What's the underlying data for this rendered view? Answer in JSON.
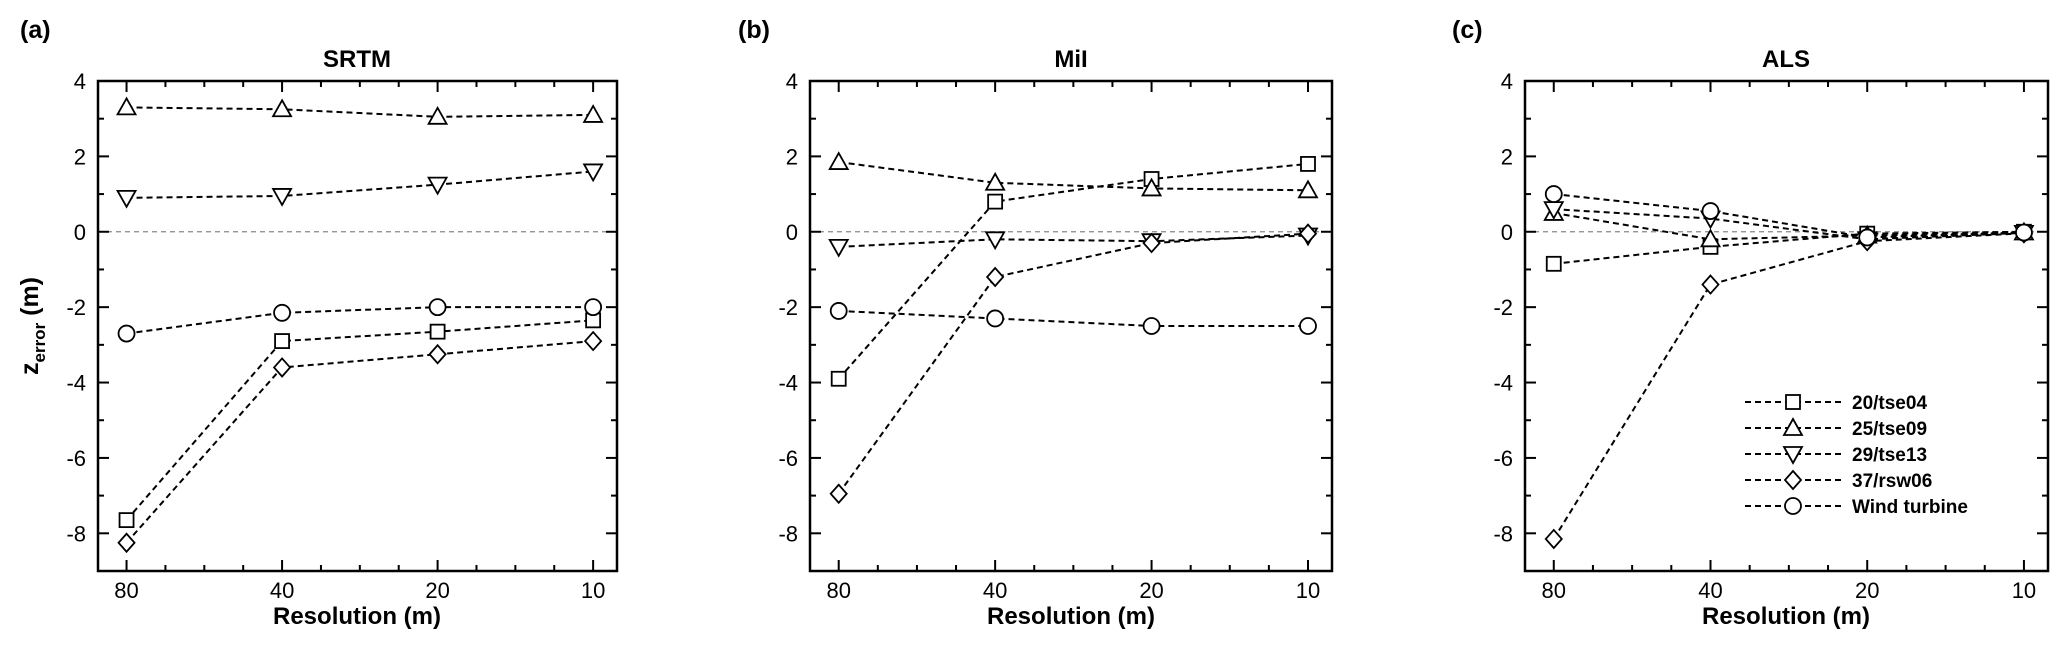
{
  "chart_data": [
    {
      "type": "line",
      "panel_letter": "(a)",
      "title": "SRTM",
      "xlabel": "Resolution (m)",
      "ylabel": "z",
      "ylabel_subscript": "error",
      "ylabel_unit": " (m)",
      "categories": [
        "80",
        "40",
        "20",
        "10"
      ],
      "ylim": [
        -9,
        4
      ],
      "yticks": [
        "4",
        "2",
        "0",
        "-2",
        "-4",
        "-6",
        "-8"
      ],
      "zero_reference_line": true,
      "series": [
        {
          "name": "20/tse04",
          "marker": "square",
          "values": [
            -7.65,
            -2.9,
            -2.65,
            -2.35
          ]
        },
        {
          "name": "25/tse09",
          "marker": "triangle-up",
          "values": [
            3.3,
            3.25,
            3.05,
            3.1
          ]
        },
        {
          "name": "29/tse13",
          "marker": "triangle-down",
          "values": [
            0.9,
            0.95,
            1.25,
            1.6
          ]
        },
        {
          "name": "37/rsw06",
          "marker": "diamond",
          "values": [
            -8.25,
            -3.6,
            -3.25,
            -2.9
          ]
        },
        {
          "name": "Wind turbine",
          "marker": "circle",
          "values": [
            -2.7,
            -2.15,
            -2.0,
            -2.0
          ]
        }
      ]
    },
    {
      "type": "line",
      "panel_letter": "(b)",
      "title": "MiI",
      "xlabel": "Resolution (m)",
      "categories": [
        "80",
        "40",
        "20",
        "10"
      ],
      "ylim": [
        -9,
        4
      ],
      "yticks": [
        "4",
        "2",
        "0",
        "-2",
        "-4",
        "-6",
        "-8"
      ],
      "zero_reference_line": true,
      "series": [
        {
          "name": "20/tse04",
          "marker": "square",
          "values": [
            -3.9,
            0.8,
            1.4,
            1.8
          ]
        },
        {
          "name": "25/tse09",
          "marker": "triangle-up",
          "values": [
            1.85,
            1.3,
            1.15,
            1.1
          ]
        },
        {
          "name": "29/tse13",
          "marker": "triangle-down",
          "values": [
            -0.4,
            -0.2,
            -0.25,
            -0.1
          ]
        },
        {
          "name": "37/rsw06",
          "marker": "diamond",
          "values": [
            -6.95,
            -1.2,
            -0.3,
            -0.05
          ]
        },
        {
          "name": "Wind turbine",
          "marker": "circle",
          "values": [
            -2.1,
            -2.3,
            -2.5,
            -2.5
          ]
        }
      ]
    },
    {
      "type": "line",
      "panel_letter": "(c)",
      "title": "ALS",
      "xlabel": "Resolution (m)",
      "categories": [
        "80",
        "40",
        "20",
        "10"
      ],
      "ylim": [
        -9,
        4
      ],
      "yticks": [
        "4",
        "2",
        "0",
        "-2",
        "-4",
        "-6",
        "-8"
      ],
      "zero_reference_line": true,
      "legend_position": "lower-right",
      "series": [
        {
          "name": "20/tse04",
          "marker": "square",
          "values": [
            -0.85,
            -0.4,
            -0.05,
            0.0
          ]
        },
        {
          "name": "25/tse09",
          "marker": "triangle-up",
          "values": [
            0.5,
            -0.2,
            -0.1,
            -0.02
          ]
        },
        {
          "name": "29/tse13",
          "marker": "triangle-down",
          "values": [
            0.6,
            0.35,
            -0.2,
            -0.03
          ]
        },
        {
          "name": "37/rsw06",
          "marker": "diamond",
          "values": [
            -8.15,
            -1.4,
            -0.25,
            -0.04
          ]
        },
        {
          "name": "Wind turbine",
          "marker": "circle",
          "values": [
            1.0,
            0.55,
            -0.15,
            -0.02
          ]
        }
      ]
    }
  ]
}
